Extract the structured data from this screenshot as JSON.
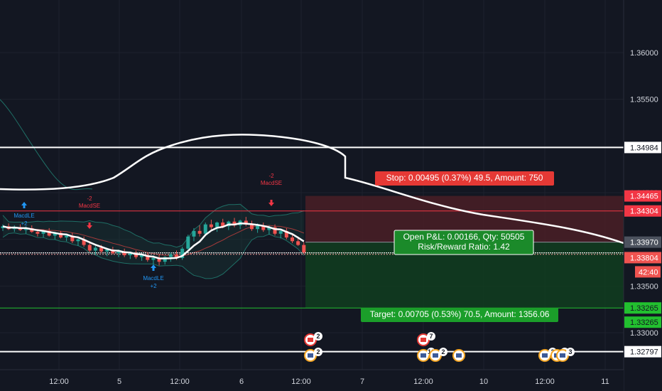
{
  "colors": {
    "background": "#131722",
    "grid": "#1e222d",
    "up_candle": "#26a69a",
    "down_candle": "#ef5350",
    "ma_line": "#ffffff",
    "bb_band": "#1f6f66",
    "bb_basis": "#a33a3a",
    "stop_zone": "#4a1e26",
    "target_zone": "#113d1f",
    "stop_box": "#e53935",
    "target_box": "#1b9e2a",
    "hline": "#ffffff",
    "stop_line": "#f23645",
    "target_line": "#22c02f"
  },
  "price_axis": {
    "ticks": [
      "1.36000",
      "1.35500",
      "1.35000",
      "1.34500",
      "1.34000",
      "1.33500",
      "1.33000"
    ],
    "tick_values": [
      1.36,
      1.355,
      1.35,
      1.345,
      1.34,
      1.335,
      1.33
    ],
    "badges": [
      {
        "label": "1.34984",
        "value": 1.34984,
        "bg": "#ffffff",
        "fg": "#131722"
      },
      {
        "label": "1.34465",
        "value": 1.34465,
        "bg": "#f23645",
        "fg": "#ffffff"
      },
      {
        "label": "1.34304",
        "value": 1.34304,
        "bg": "#f23645",
        "fg": "#ffffff"
      },
      {
        "label": "1.33970",
        "value": 1.3397,
        "bg": "#4c525e",
        "fg": "#ffffff"
      },
      {
        "label": "1.33804",
        "value": 1.33804,
        "bg": "#ef5350",
        "fg": "#ffffff"
      },
      {
        "label": "1.33265",
        "value": 1.33265,
        "bg": "#22c02f",
        "fg": "#131722"
      },
      {
        "label": "1.33265",
        "value": 1.33265,
        "bg": "#22c02f",
        "fg": "#131722",
        "offset": 20
      },
      {
        "label": "1.32797",
        "value": 1.32797,
        "bg": "#ffffff",
        "fg": "#131722"
      }
    ],
    "countdown": "42:40"
  },
  "time_axis": {
    "labels": [
      "12:00",
      "5",
      "12:00",
      "6",
      "12:00",
      "7",
      "12:00",
      "10",
      "12:00",
      "11"
    ]
  },
  "position": {
    "stop_label": "Stop: 0.00495 (0.37%) 49.5, Amount: 750",
    "pnl_label": "Open P&L: 0.00166, Qty: 50505",
    "rr_label": "Risk/Reward Ratio: 1.42",
    "target_label": "Target: 0.00705 (0.53%) 70.5, Amount: 1356.06",
    "entry": 1.3397,
    "stop": 1.34465,
    "target": 1.33265,
    "top_line": 1.34304
  },
  "hlines": [
    1.34984,
    1.32797,
    1.33855
  ],
  "signals": [
    {
      "label": "MacdLE",
      "sub": "+2",
      "type": "long"
    },
    {
      "label": "MacdSE",
      "sub": "-2",
      "type": "short"
    },
    {
      "label": "MacdLE",
      "sub": "+2",
      "type": "long"
    },
    {
      "label": "MacdSE",
      "sub": "-2",
      "type": "short"
    }
  ],
  "events": [
    "2",
    "2",
    "7",
    "10",
    "2",
    "2",
    "2",
    "3"
  ],
  "chart_data": {
    "type": "candlestick",
    "series": [
      {
        "name": "",
        "values": [
          [
            1.3412,
            1.3416,
            1.3409,
            1.3414
          ],
          [
            1.3414,
            1.3417,
            1.341,
            1.3411
          ],
          [
            1.3411,
            1.3415,
            1.3408,
            1.3413
          ],
          [
            1.3413,
            1.3416,
            1.3409,
            1.341
          ],
          [
            1.341,
            1.3414,
            1.3406,
            1.3412
          ],
          [
            1.3412,
            1.3415,
            1.3407,
            1.3408
          ],
          [
            1.3408,
            1.3411,
            1.3403,
            1.3406
          ],
          [
            1.3406,
            1.341,
            1.3402,
            1.3409
          ],
          [
            1.3409,
            1.3412,
            1.3403,
            1.3404
          ],
          [
            1.3404,
            1.3408,
            1.34,
            1.3407
          ],
          [
            1.3407,
            1.3409,
            1.3401,
            1.3402
          ],
          [
            1.3402,
            1.3406,
            1.3398,
            1.3404
          ],
          [
            1.3404,
            1.3407,
            1.3396,
            1.3398
          ],
          [
            1.3398,
            1.3402,
            1.3393,
            1.34
          ],
          [
            1.34,
            1.3403,
            1.3392,
            1.3394
          ],
          [
            1.3394,
            1.3398,
            1.3386,
            1.3388
          ],
          [
            1.3388,
            1.3393,
            1.3383,
            1.3391
          ],
          [
            1.3391,
            1.3394,
            1.3385,
            1.3387
          ],
          [
            1.3387,
            1.3391,
            1.3382,
            1.3389
          ],
          [
            1.3389,
            1.3392,
            1.3384,
            1.3385
          ],
          [
            1.3385,
            1.3389,
            1.3381,
            1.3387
          ],
          [
            1.3387,
            1.339,
            1.3381,
            1.3383
          ],
          [
            1.3383,
            1.3387,
            1.3379,
            1.3385
          ],
          [
            1.3385,
            1.3388,
            1.3379,
            1.3381
          ],
          [
            1.3381,
            1.3385,
            1.3377,
            1.3383
          ],
          [
            1.3383,
            1.3386,
            1.3376,
            1.3378
          ],
          [
            1.3378,
            1.3383,
            1.3373,
            1.338
          ],
          [
            1.338,
            1.3384,
            1.3372,
            1.3376
          ],
          [
            1.3376,
            1.3382,
            1.3373,
            1.3381
          ],
          [
            1.3381,
            1.3386,
            1.3376,
            1.3384
          ],
          [
            1.3384,
            1.3388,
            1.3378,
            1.338
          ],
          [
            1.338,
            1.3392,
            1.3378,
            1.339
          ],
          [
            1.339,
            1.3405,
            1.3388,
            1.3403
          ],
          [
            1.3403,
            1.3412,
            1.3398,
            1.3409
          ],
          [
            1.3409,
            1.3415,
            1.3403,
            1.3406
          ],
          [
            1.3406,
            1.3418,
            1.3404,
            1.3416
          ],
          [
            1.3416,
            1.3421,
            1.341,
            1.3413
          ],
          [
            1.3413,
            1.3419,
            1.3408,
            1.3418
          ],
          [
            1.3418,
            1.3422,
            1.3412,
            1.3414
          ],
          [
            1.3414,
            1.342,
            1.341,
            1.3419
          ],
          [
            1.3419,
            1.3423,
            1.3413,
            1.3415
          ],
          [
            1.3415,
            1.3421,
            1.3411,
            1.342
          ],
          [
            1.342,
            1.3424,
            1.3414,
            1.3416
          ],
          [
            1.3416,
            1.342,
            1.3409,
            1.3411
          ],
          [
            1.3411,
            1.3417,
            1.3407,
            1.3415
          ],
          [
            1.3415,
            1.3418,
            1.3408,
            1.341
          ],
          [
            1.341,
            1.3415,
            1.3405,
            1.3413
          ],
          [
            1.3413,
            1.3416,
            1.3404,
            1.3406
          ],
          [
            1.3406,
            1.3411,
            1.3401,
            1.3409
          ],
          [
            1.3409,
            1.3412,
            1.34,
            1.3402
          ],
          [
            1.3402,
            1.3406,
            1.3396,
            1.3398
          ],
          [
            1.3398,
            1.3403,
            1.3393,
            1.3394
          ],
          [
            1.3394,
            1.3397,
            1.3384,
            1.3386
          ]
        ]
      }
    ]
  }
}
